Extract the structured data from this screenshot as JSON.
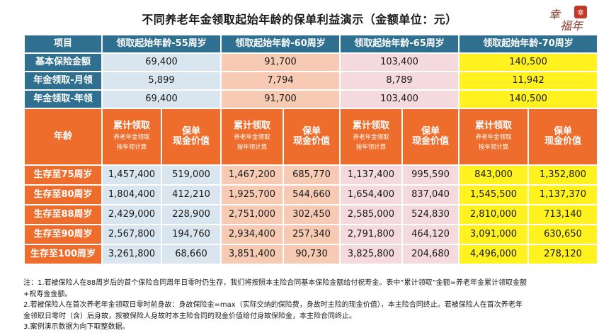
{
  "title": "不同养老年金领取起始年龄的保单利益演示（金额单位：元）",
  "header": {
    "item": "项目",
    "cols": [
      "领取起始年龄-55周岁",
      "领取起始年龄-60周岁",
      "领取起始年龄-65周岁",
      "领取起始年龄-70周岁"
    ]
  },
  "basic_rows": [
    {
      "label": "基本保险金额",
      "values": [
        "69,400",
        "91,700",
        "103,400",
        "140,500"
      ]
    },
    {
      "label": "年金领取-月领",
      "values": [
        "5,899",
        "7,794",
        "8,789",
        "11,942"
      ]
    },
    {
      "label": "年金领取-年领",
      "values": [
        "69,400",
        "91,700",
        "103,400",
        "140,500"
      ]
    }
  ],
  "age_header": {
    "age": "年龄",
    "cum_title": "累计领取",
    "cum_sub1": "养老年金领取",
    "cum_sub2": "按年领计算",
    "cash_line1": "保单",
    "cash_line2": "现金价值"
  },
  "benefit_rows": [
    {
      "label": "生存至75周岁",
      "values": [
        "1,457,400",
        "519,000",
        "1,467,200",
        "685,770",
        "1,137,400",
        "995,590",
        "843,000",
        "1,352,800"
      ]
    },
    {
      "label": "生存至80周岁",
      "values": [
        "1,804,400",
        "412,210",
        "1,925,700",
        "544,660",
        "1,654,400",
        "837,040",
        "1,545,500",
        "1,137,370"
      ]
    },
    {
      "label": "生存至88周岁",
      "values": [
        "2,429,000",
        "228,900",
        "2,751,000",
        "302,450",
        "2,585,000",
        "524,830",
        "2,810,000",
        "713,140"
      ]
    },
    {
      "label": "生存至90周岁",
      "values": [
        "2,567,800",
        "194,760",
        "2,934,400",
        "257,340",
        "2,791,800",
        "464,120",
        "3,091,000",
        "630,650"
      ]
    },
    {
      "label": "生存至100周岁",
      "values": [
        "3,261,800",
        "68,660",
        "3,851,400",
        "90,730",
        "3,825,800",
        "204,680",
        "4,496,000",
        "278,120"
      ]
    }
  ],
  "notes": [
    "注：1.若被保险人在88周岁后的首个保险合同周年日零时仍生存，我们将按照本主险合同基本保险金额给付祝寿金。表中“累计领取”金额=养老年金累计领取金额",
    "+祝寿金金额。",
    "2.若被保险人在首次养老年金领取日零时前身故：身故保险金=max（实际交纳的保险费，身故时主险的现金价值），本主险合同终止。若被保险人在首次养老年",
    "金领取日零时（含）后身故，按被保险人身故时本主险合同的现金价值给付身故保险金，本主险合同终止。",
    "3.案例演示数据为向下取整数据。"
  ],
  "seal_text": "幸福年",
  "colors": {
    "header_blue": "#2f6f8f",
    "orange": "#ee6d2c",
    "col55": "#dae6ef",
    "col60": "#f7cbb3",
    "col65": "#f4d9de",
    "col70": "#fff21e",
    "seal_red": "#c0392b"
  }
}
